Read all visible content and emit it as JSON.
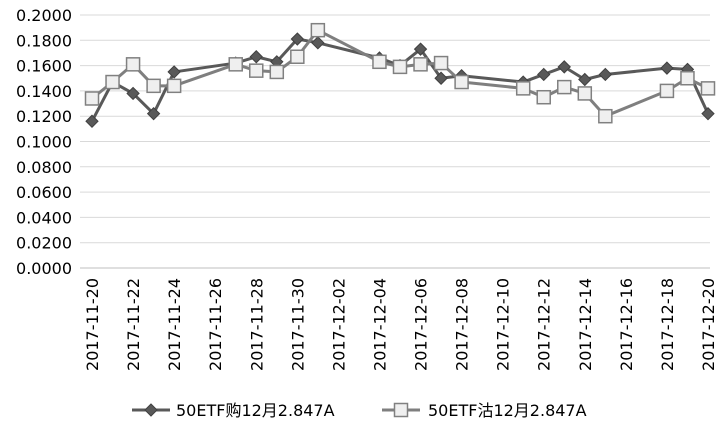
{
  "chart_data": {
    "type": "line",
    "title": "",
    "xlabel": "",
    "ylabel": "",
    "ylim": [
      0,
      0.2
    ],
    "y_ticks": [
      "0.0000",
      "0.0200",
      "0.0400",
      "0.0600",
      "0.0800",
      "0.1000",
      "0.1200",
      "0.1400",
      "0.1600",
      "0.1800",
      "0.2000"
    ],
    "x_ticks": [
      "2017-11-20",
      "2017-11-22",
      "2017-11-24",
      "2017-11-26",
      "2017-11-28",
      "2017-11-30",
      "2017-12-02",
      "2017-12-04",
      "2017-12-06",
      "2017-12-08",
      "2017-12-10",
      "2017-12-12",
      "2017-12-14",
      "2017-12-16",
      "2017-12-18",
      "2017-12-20"
    ],
    "grid": "horizontal",
    "legend_position": "bottom",
    "series": [
      {
        "name": "50ETF购12月2.847A",
        "color": "#595959",
        "marker": "diamond",
        "points": [
          [
            "2017-11-20",
            0.116
          ],
          [
            "2017-11-21",
            0.147
          ],
          [
            "2017-11-22",
            0.138
          ],
          [
            "2017-11-23",
            0.122
          ],
          [
            "2017-11-24",
            0.155
          ],
          [
            "2017-11-27",
            0.162
          ],
          [
            "2017-11-28",
            0.167
          ],
          [
            "2017-11-29",
            0.163
          ],
          [
            "2017-11-30",
            0.181
          ],
          [
            "2017-12-01",
            0.178
          ],
          [
            "2017-12-04",
            0.166
          ],
          [
            "2017-12-05",
            0.16
          ],
          [
            "2017-12-06",
            0.173
          ],
          [
            "2017-12-07",
            0.15
          ],
          [
            "2017-12-08",
            0.152
          ],
          [
            "2017-12-11",
            0.147
          ],
          [
            "2017-12-12",
            0.153
          ],
          [
            "2017-12-13",
            0.159
          ],
          [
            "2017-12-14",
            0.149
          ],
          [
            "2017-12-15",
            0.153
          ],
          [
            "2017-12-18",
            0.158
          ],
          [
            "2017-12-19",
            0.157
          ],
          [
            "2017-12-20",
            0.122
          ]
        ]
      },
      {
        "name": "50ETF沽12月2.847A",
        "color": "#7f7f7f",
        "marker": "square",
        "points": [
          [
            "2017-11-20",
            0.134
          ],
          [
            "2017-11-21",
            0.147
          ],
          [
            "2017-11-22",
            0.161
          ],
          [
            "2017-11-23",
            0.144
          ],
          [
            "2017-11-24",
            0.144
          ],
          [
            "2017-11-27",
            0.161
          ],
          [
            "2017-11-28",
            0.156
          ],
          [
            "2017-11-29",
            0.155
          ],
          [
            "2017-11-30",
            0.167
          ],
          [
            "2017-12-01",
            0.188
          ],
          [
            "2017-12-04",
            0.163
          ],
          [
            "2017-12-05",
            0.159
          ],
          [
            "2017-12-06",
            0.161
          ],
          [
            "2017-12-07",
            0.162
          ],
          [
            "2017-12-08",
            0.147
          ],
          [
            "2017-12-11",
            0.142
          ],
          [
            "2017-12-12",
            0.135
          ],
          [
            "2017-12-13",
            0.143
          ],
          [
            "2017-12-14",
            0.138
          ],
          [
            "2017-12-15",
            0.12
          ],
          [
            "2017-12-18",
            0.14
          ],
          [
            "2017-12-19",
            0.15
          ],
          [
            "2017-12-20",
            0.142
          ]
        ]
      }
    ]
  }
}
